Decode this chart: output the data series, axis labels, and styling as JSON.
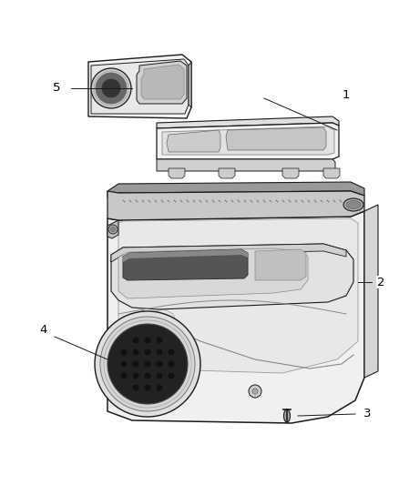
{
  "background_color": "#ffffff",
  "fig_width": 4.38,
  "fig_height": 5.33,
  "dpi": 100,
  "line_color": "#1a1a1a",
  "light_fill": "#f2f2f2",
  "mid_fill": "#d8d8d8",
  "dark_fill": "#888888",
  "darker_fill": "#444444"
}
